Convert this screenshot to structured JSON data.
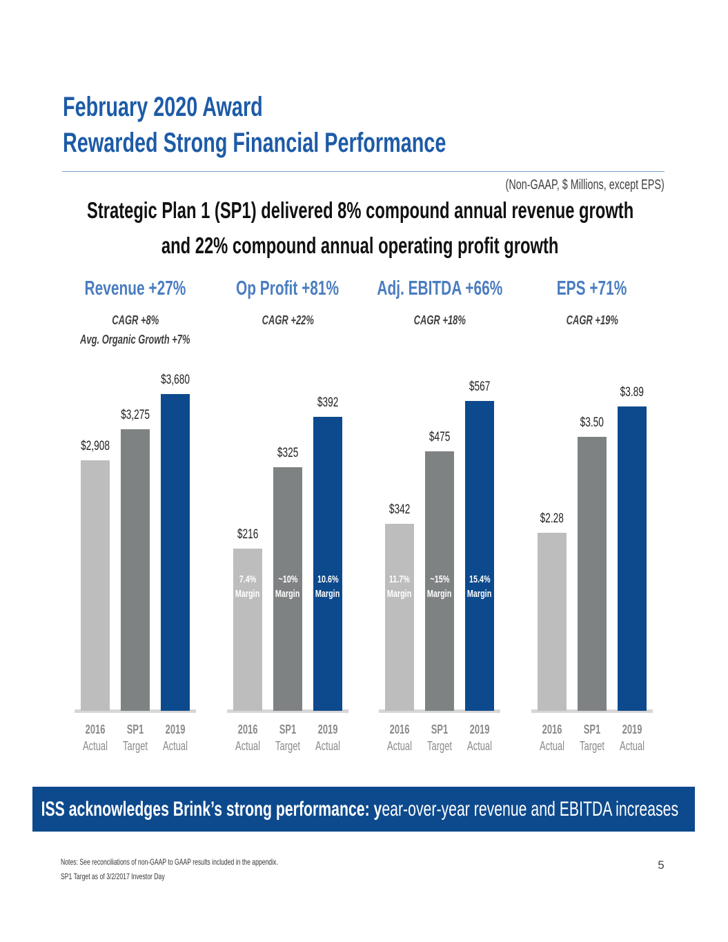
{
  "slide": {
    "title_line1": "February 2020 Award",
    "title_line2": "Rewarded Strong Financial Performance",
    "units_note": "(Non-GAAP, $ Millions, except EPS)",
    "subtitle_line1": "Strategic Plan 1 (SP1) delivered 8% compound annual revenue growth",
    "subtitle_line2": "and 22% compound annual operating profit growth",
    "banner_bold": "ISS acknowledges Brink’s strong performance: y",
    "banner_regular": "ear-over-year revenue and EBITDA increases",
    "notes_line1": "Notes: See reconciliations of non-GAAP to GAAP results included in the appendix.",
    "notes_line2": "SP1 Target as of 3/2/2017 Investor Day",
    "page_number": "5"
  },
  "colors": {
    "title": "#1d5ba7",
    "chart_title": "#4a7dc0",
    "rule": "#7aa2d2",
    "bars": [
      "#bdbdbd",
      "#7f8283",
      "#0d4a8d"
    ],
    "baseline": "#d6d6d6",
    "banner": "#0d4a8d",
    "banner_text": "#ffffff",
    "tick_label": "#8a8a8a",
    "cagr": "#404040"
  },
  "chart_data": [
    {
      "type": "bar",
      "title": "Revenue +27%",
      "subtitle_lines": [
        "CAGR +8%",
        "Avg. Organic Growth +7%"
      ],
      "categories": [
        {
          "line1": "2016",
          "line2": "Actual"
        },
        {
          "line1": "SP1",
          "line2": "Target"
        },
        {
          "line1": "2019",
          "line2": "Actual"
        }
      ],
      "values": [
        2908,
        3275,
        3680
      ],
      "value_labels": [
        "$2,908",
        "$3,275",
        "$3,680"
      ]
    },
    {
      "type": "bar",
      "title": "Op Profit +81%",
      "subtitle_lines": [
        "CAGR +22%"
      ],
      "categories": [
        {
          "line1": "2016",
          "line2": "Actual"
        },
        {
          "line1": "SP1",
          "line2": "Target"
        },
        {
          "line1": "2019",
          "line2": "Actual"
        }
      ],
      "values": [
        216,
        325,
        392
      ],
      "value_labels": [
        "$216",
        "$325",
        "$392"
      ],
      "bar_annotations": [
        {
          "value": "7.4%",
          "label": "Margin"
        },
        {
          "value": "~10%",
          "label": "Margin"
        },
        {
          "value": "10.6%",
          "label": "Margin"
        }
      ]
    },
    {
      "type": "bar",
      "title": "Adj. EBITDA +66%",
      "subtitle_lines": [
        "CAGR +18%"
      ],
      "categories": [
        {
          "line1": "2016",
          "line2": "Actual"
        },
        {
          "line1": "SP1",
          "line2": "Target"
        },
        {
          "line1": "2019",
          "line2": "Actual"
        }
      ],
      "values": [
        342,
        475,
        567
      ],
      "value_labels": [
        "$342",
        "$475",
        "$567"
      ],
      "bar_annotations": [
        {
          "value": "11.7%",
          "label": "Margin"
        },
        {
          "value": "~15%",
          "label": "Margin"
        },
        {
          "value": "15.4%",
          "label": "Margin"
        }
      ]
    },
    {
      "type": "bar",
      "title": "EPS +71%",
      "subtitle_lines": [
        "CAGR +19%"
      ],
      "categories": [
        {
          "line1": "2016",
          "line2": "Actual"
        },
        {
          "line1": "SP1",
          "line2": "Target"
        },
        {
          "line1": "2019",
          "line2": "Actual"
        }
      ],
      "values": [
        2.28,
        3.5,
        3.89
      ],
      "value_labels": [
        "$2.28",
        "$3.50",
        "$3.89"
      ]
    }
  ]
}
